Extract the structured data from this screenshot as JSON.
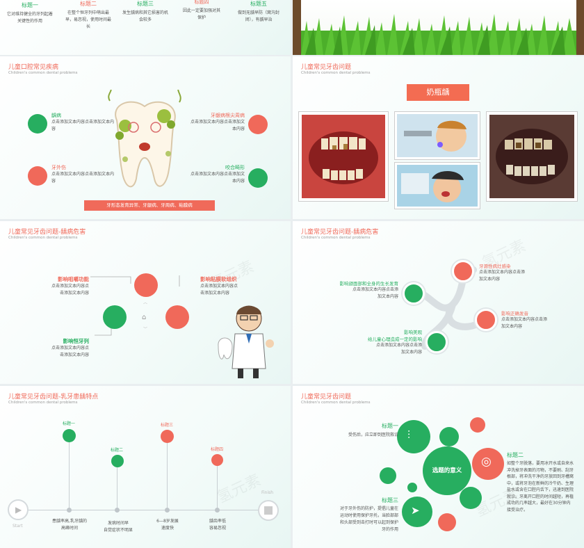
{
  "top_left": {
    "items": [
      {
        "label": "标题一",
        "text": "它对维持健全的牙列起着关键性的作用"
      },
      {
        "label": "标题二",
        "text": "在整个恒牙列中萌出最早，易忽视，使用时间最长"
      },
      {
        "label": "标题三",
        "text": "发生龋病和其它损害的机会较多"
      },
      {
        "label": "标题四",
        "text": "因此一定要加强对其保护"
      },
      {
        "label": "标题五",
        "text": "做到无龋早防（窝沟封闭），有龋早治"
      }
    ]
  },
  "slide1": {
    "title": "儿童口腔常见疾病",
    "subtitle": "Children's common dental problems",
    "items": [
      {
        "label": "龋病",
        "desc": "点击添加文本内容点击添加文本内容"
      },
      {
        "label": "牙龈病根尖周病",
        "desc": "点击添加文本内容点击添加文本内容"
      },
      {
        "label": "牙外伤",
        "desc": "点击添加文本内容点击添加文本内容"
      },
      {
        "label": "咬合畸形",
        "desc": "点击添加文本内容点击添加文本内容"
      }
    ],
    "banner": "牙形态发育异常、牙龈病、牙周病、粘膜病"
  },
  "slide2": {
    "title": "儿童常见牙齿问题",
    "subtitle": "Children's common dental problems",
    "badge": "奶瓶龋"
  },
  "slide3": {
    "title": "儿童常见牙齿问题-龋病危害",
    "subtitle": "Children's common dental problems",
    "items": [
      {
        "label": "影响咀嚼功能",
        "desc1": "点击添加文本内容点",
        "desc2": "击添加文本内容"
      },
      {
        "label": "影响粘膜软组织",
        "desc1": "点击添加文本内容点",
        "desc2": "击添加文本内容"
      },
      {
        "label": "影响恒牙列",
        "desc1": "点击添加文本内容点",
        "desc2": "击添加文本内容"
      }
    ],
    "watermark": "氢元素"
  },
  "slide4": {
    "title": "儿童常见牙齿问题-龋病危害",
    "subtitle": "Children's common dental problems",
    "items": [
      {
        "label": "影响颌面部和全身的生长发育",
        "desc1": "点击添加文本内容点击添",
        "desc2": "加文本内容"
      },
      {
        "label": "牙源性病灶感染",
        "desc1": "点击添加文本内容点击添",
        "desc2": "加文本内容"
      },
      {
        "label": "影响正确发音",
        "desc1": "点击添加文本内容点击添",
        "desc2": "加文本内容"
      },
      {
        "label": "影响美观",
        "label2": "给儿童心理造成一定的影响",
        "desc1": "点击添加文本内容点击添",
        "desc2": "加文本内容"
      }
    ],
    "watermark": "氢元素"
  },
  "slide5": {
    "title": "儿童常见牙齿问题-乳牙患龋特点",
    "subtitle": "Children's common dental problems",
    "start": "Start",
    "finish": "Finish",
    "pins": [
      {
        "label": "标题一"
      },
      {
        "label": "标题二"
      },
      {
        "label": "标题三"
      },
      {
        "label": "标题四"
      }
    ],
    "descs": [
      {
        "l1": "患龋率高,乳牙龋的",
        "l2": "高峰时间"
      },
      {
        "l1": "发病时间早",
        "l2": "自觉症状不明显"
      },
      {
        "l1": "6—8岁发展",
        "l2": "速度快"
      },
      {
        "l1": "龋齿率低",
        "l2": "容易忽视"
      }
    ],
    "watermark": "氢元素"
  },
  "slide6": {
    "title": "儿童常见牙齿问题",
    "subtitle": "Children's common dental problems",
    "center": "选题的意义",
    "t1": "标题一",
    "t1_desc": "受伤后，应立即到医院救诊",
    "t2": "标题二",
    "t2_desc": "如整个牙脱落，要用冰开水或自来水冲洗掉牙表面的污物，不要刷、刮牙根部，将冲洗干净的牙放回到牙槽窝中，或将牙泡在新鲜的冷牛奶、生理盐水或含在口腔内舌下，迅速到医院就诊。牙离开口腔的时间越短，再植成功的几率越大，最好在30分钟内接受治疗。",
    "t3": "标题三",
    "t3_desc": "对于牙外伤的防护，提倡儿童在运动时使用保护牙托，当脸部部和头部受到击打时可以起到保护牙的作用",
    "watermark": "氢元素"
  },
  "colors": {
    "green": "#27ae60",
    "red": "#f0695a",
    "accent": "#f36c52"
  }
}
